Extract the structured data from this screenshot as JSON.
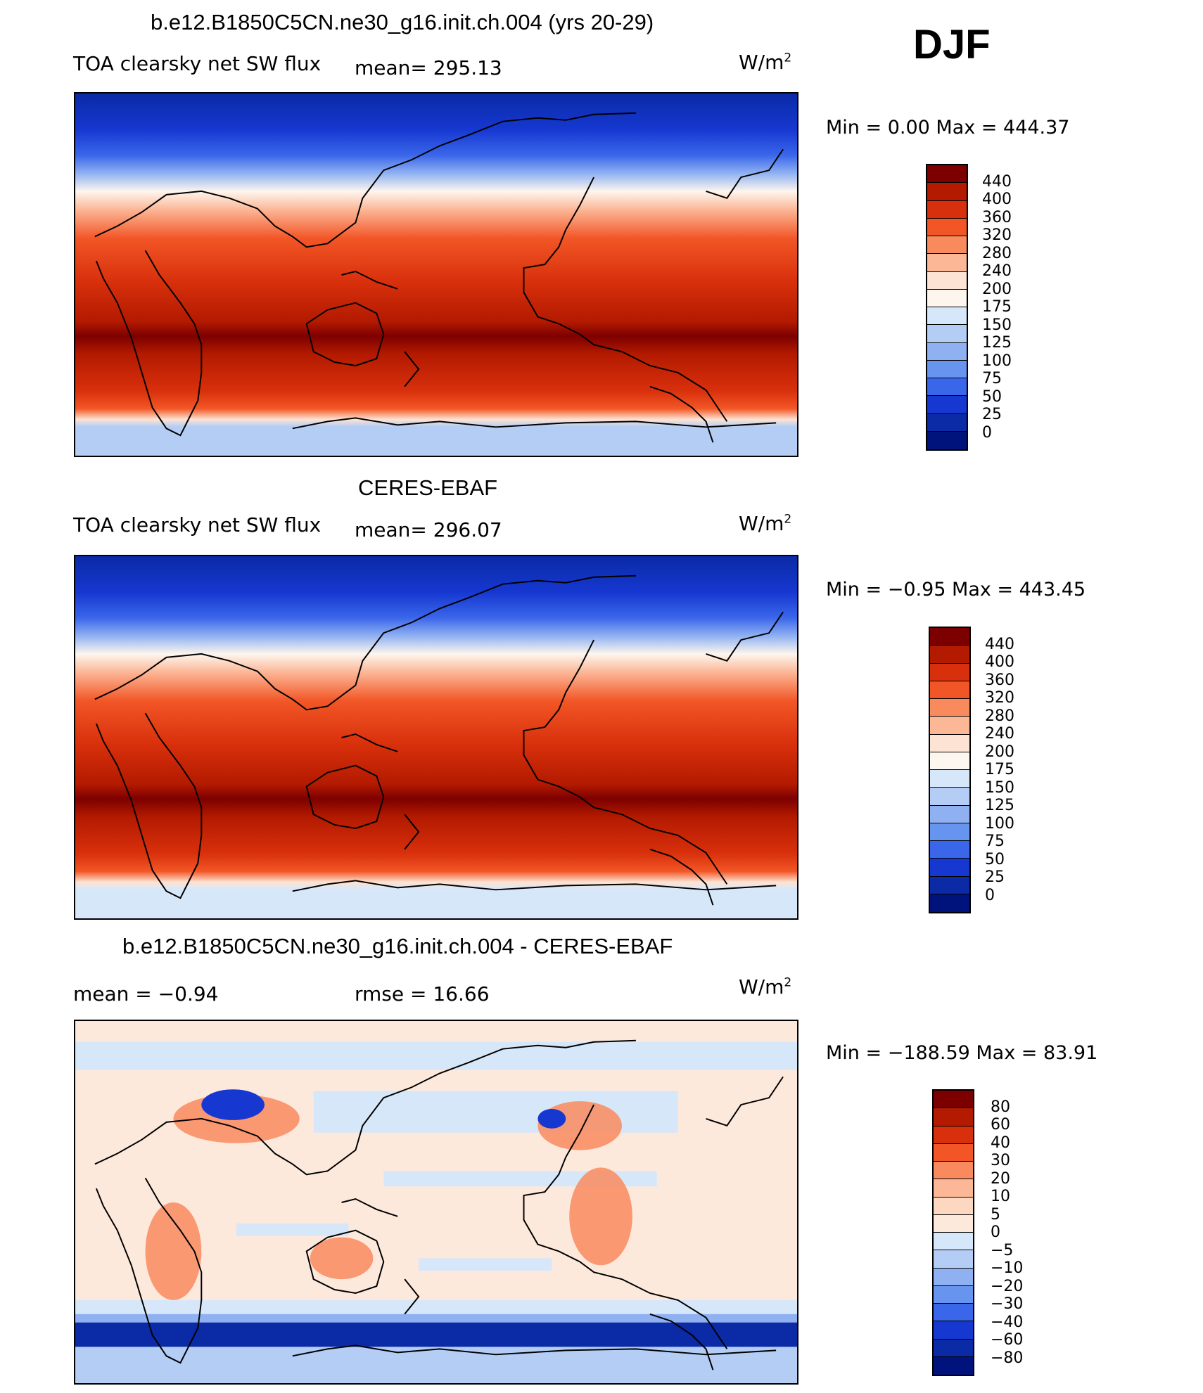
{
  "header": {
    "season": "DJF"
  },
  "panels": [
    {
      "title": "b.e12.B1850C5CN.ne30_g16.init.ch.004 (yrs 20-29)",
      "variable": "TOA clearsky net SW flux",
      "stat1": "mean= 295.13",
      "stat2": "",
      "units": "W/m",
      "units_exp": "2",
      "minmax": "Min =    0.00 Max = 444.37",
      "colorbar_labels": [
        "440",
        "400",
        "360",
        "320",
        "280",
        "240",
        "200",
        "175",
        "150",
        "125",
        "100",
        "75",
        "50",
        "25",
        "0"
      ]
    },
    {
      "title": "CERES-EBAF",
      "variable": "TOA clearsky net SW flux",
      "stat1": "mean= 296.07",
      "stat2": "",
      "units": "W/m",
      "units_exp": "2",
      "minmax": "Min =  −0.95 Max = 443.45",
      "colorbar_labels": [
        "440",
        "400",
        "360",
        "320",
        "280",
        "240",
        "200",
        "175",
        "150",
        "125",
        "100",
        "75",
        "50",
        "25",
        "0"
      ]
    },
    {
      "title": "b.e12.B1850C5CN.ne30_g16.init.ch.004 - CERES-EBAF",
      "variable": "",
      "stat1": "mean =   −0.94",
      "stat2": "rmse =   16.66",
      "units": "W/m",
      "units_exp": "2",
      "minmax": "Min = −188.59 Max =   83.91",
      "colorbar_labels": [
        "80",
        "60",
        "40",
        "30",
        "20",
        "10",
        "5",
        "0",
        "−5",
        "−10",
        "−20",
        "−30",
        "−40",
        "−60",
        "−80"
      ]
    }
  ],
  "colors": {
    "abs_scale": [
      "#7d0000",
      "#b31a00",
      "#d8300c",
      "#f25626",
      "#f98a5e",
      "#fcb797",
      "#fde3d3",
      "#fdf6ee",
      "#d7e7fa",
      "#b4cdf5",
      "#8fb1f2",
      "#6794ef",
      "#3a66ea",
      "#1638d1",
      "#0a2aa6",
      "#00127c"
    ],
    "diff_scale": [
      "#7d0000",
      "#b31a00",
      "#d8300c",
      "#f25626",
      "#f98a5e",
      "#fcb797",
      "#fcd8c0",
      "#fde9dc",
      "#d7e7fa",
      "#b4cdf5",
      "#8fb1f2",
      "#6794ef",
      "#3a66ea",
      "#1638d1",
      "#0a2aa6",
      "#00127c"
    ]
  }
}
